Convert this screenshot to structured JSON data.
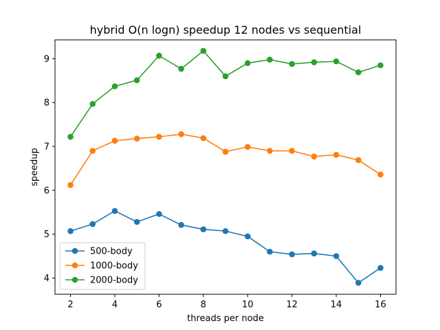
{
  "chart_data": {
    "type": "line",
    "title": "hybrid O(n logn) speedup 12 nodes vs sequential",
    "xlabel": "threads per node",
    "ylabel": "speedup",
    "x": [
      2,
      3,
      4,
      5,
      6,
      7,
      8,
      9,
      10,
      11,
      12,
      13,
      14,
      15,
      16
    ],
    "xlim": [
      1.3,
      16.7
    ],
    "ylim": [
      3.63,
      9.43
    ],
    "xticks": [
      2,
      4,
      6,
      8,
      10,
      12,
      14,
      16
    ],
    "yticks": [
      4,
      5,
      6,
      7,
      8,
      9
    ],
    "grid": false,
    "legend_position": "lower-left",
    "series": [
      {
        "name": "500-body",
        "color": "#1f77b4",
        "values": [
          5.07,
          5.23,
          5.53,
          5.28,
          5.46,
          5.21,
          5.11,
          5.07,
          4.95,
          4.6,
          4.54,
          4.56,
          4.5,
          3.89,
          4.23
        ]
      },
      {
        "name": "1000-body",
        "color": "#ff7f0e",
        "values": [
          6.12,
          6.9,
          7.13,
          7.18,
          7.22,
          7.28,
          7.19,
          6.88,
          6.99,
          6.9,
          6.9,
          6.77,
          6.81,
          6.69,
          6.36
        ]
      },
      {
        "name": "2000-body",
        "color": "#2ca02c",
        "values": [
          7.22,
          7.97,
          8.37,
          8.51,
          9.07,
          8.77,
          9.18,
          8.6,
          8.9,
          8.98,
          8.88,
          8.92,
          8.94,
          8.69,
          8.85
        ]
      }
    ]
  }
}
